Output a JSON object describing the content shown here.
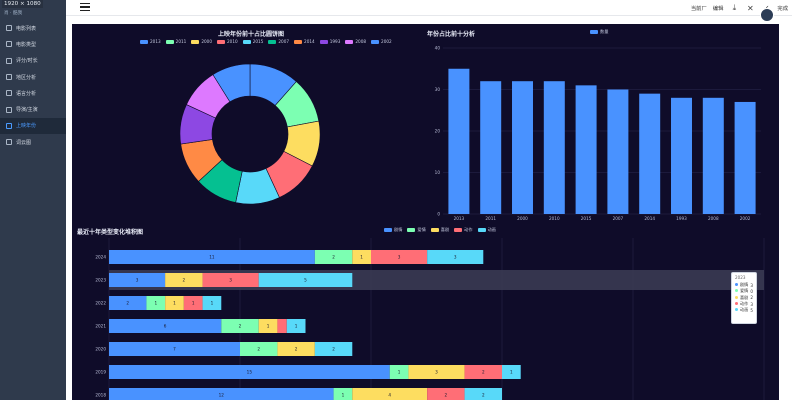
{
  "screen": {
    "dimension_label": "1920 × 1080"
  },
  "sidebar": {
    "brand": "肖 · 酷我",
    "items": [
      {
        "label": "电影列表",
        "active": false
      },
      {
        "label": "电影类型",
        "active": false
      },
      {
        "label": "评分/时长",
        "active": false
      },
      {
        "label": "地区分析",
        "active": false
      },
      {
        "label": "语言分析",
        "active": false
      },
      {
        "label": "导演/主演",
        "active": false
      },
      {
        "label": "上映年份",
        "active": true
      },
      {
        "label": "词云图",
        "active": false
      }
    ]
  },
  "topbar": {
    "user": "当前厂",
    "edit": "编辑",
    "done": "完成"
  },
  "donut": {
    "title": "上映年份前十占比圆饼图",
    "legend": [
      "2013",
      "2011",
      "2000",
      "2010",
      "2015",
      "2007",
      "2014",
      "1993",
      "2008",
      "2002"
    ],
    "values": [
      35,
      32,
      32,
      32,
      31,
      30,
      29,
      28,
      28,
      27
    ],
    "colors": [
      "#4992ff",
      "#7cffb2",
      "#fddd60",
      "#ff6e76",
      "#58d9f9",
      "#05c091",
      "#ff8a45",
      "#8d48e3",
      "#dd79ff",
      "#4992ff"
    ]
  },
  "chart_data": [
    {
      "type": "bar",
      "title": "年份占比前十分析",
      "legend": [
        "数量"
      ],
      "categories": [
        "2013",
        "2011",
        "2000",
        "2010",
        "2015",
        "2007",
        "2014",
        "1993",
        "2008",
        "2002"
      ],
      "values": [
        35,
        32,
        32,
        32,
        31,
        30,
        29,
        28,
        28,
        27
      ],
      "ylim": [
        0,
        40
      ],
      "yticks": [
        0,
        10,
        20,
        30,
        40
      ],
      "color": "#4992ff"
    },
    {
      "type": "bar",
      "orientation": "horizontal",
      "stacked": true,
      "title": "最近十年类型变化堆积图",
      "legend": [
        "剧情",
        "爱情",
        "喜剧",
        "动作",
        "动画"
      ],
      "colors": [
        "#4992ff",
        "#7cffb2",
        "#fddd60",
        "#ff6e76",
        "#58d9f9"
      ],
      "categories": [
        "2024",
        "2023",
        "2022",
        "2021",
        "2020",
        "2019",
        "2018"
      ],
      "series": [
        {
          "name": "剧情",
          "values": [
            11,
            3,
            2,
            6,
            7,
            15,
            12
          ]
        },
        {
          "name": "爱情",
          "values": [
            2,
            0,
            1,
            2,
            2,
            1,
            1
          ]
        },
        {
          "name": "喜剧",
          "values": [
            1,
            2,
            1,
            1,
            2,
            3,
            4
          ]
        },
        {
          "name": "动作",
          "values": [
            3,
            3,
            1,
            0.5,
            0,
            2,
            2
          ]
        },
        {
          "name": "动画",
          "values": [
            3,
            5,
            1,
            1,
            2,
            1,
            2
          ]
        }
      ],
      "value_labels": [
        [
          "11",
          "2",
          "1",
          "3",
          "3"
        ],
        [
          "3",
          "",
          "2",
          "3",
          "5"
        ],
        [
          "2",
          "1",
          "1",
          "1",
          "1"
        ],
        [
          "6",
          "2",
          "1",
          "",
          "1"
        ],
        [
          "7",
          "2",
          "2",
          "",
          "2"
        ],
        [
          "15",
          "1",
          "3",
          "2",
          "1"
        ],
        [
          "12",
          "1",
          "4",
          "2",
          "2"
        ]
      ],
      "highlight_row": "2023",
      "xmax": 35
    }
  ],
  "tooltip": {
    "title": "2023",
    "rows": [
      {
        "name": "剧情",
        "value": "3",
        "color": "#4992ff"
      },
      {
        "name": "爱情",
        "value": "0",
        "color": "#7cffb2"
      },
      {
        "name": "喜剧",
        "value": "2",
        "color": "#fddd60"
      },
      {
        "name": "动作",
        "value": "3",
        "color": "#ff6e76"
      },
      {
        "name": "动画",
        "value": "5",
        "color": "#58d9f9"
      }
    ]
  }
}
